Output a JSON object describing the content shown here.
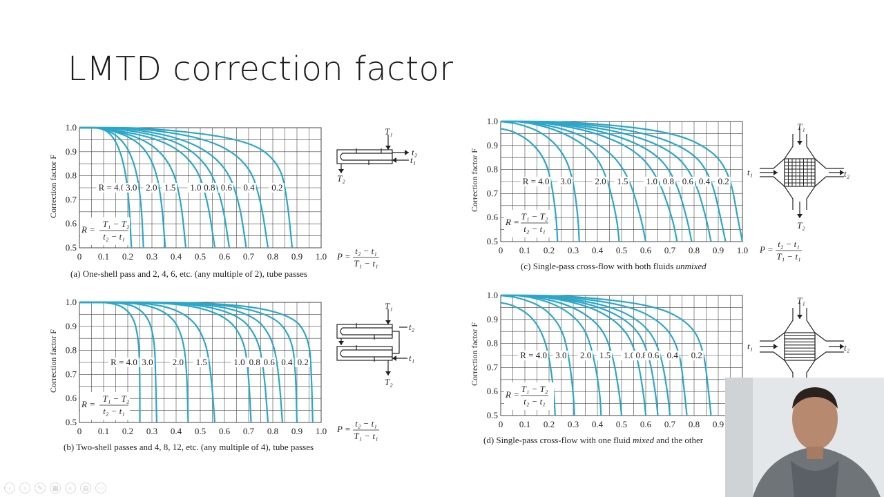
{
  "slide": {
    "title": "LMTD correction factor"
  },
  "captions": {
    "a_label": "(a)",
    "a_text": "One-shell pass and 2, 4, 6, etc. (any multiple of 2), tube passes",
    "b_label": "(b)",
    "b_text": "Two-shell passes and 4, 8, 12, etc. (any multiple of 4), tube passes",
    "c_label": "(c)",
    "c_text": "Single-pass cross-flow with both fluids",
    "c_em": "unmixed",
    "d_label": "(d)",
    "d_text": "Single-pass cross-flow with one fluid",
    "d_em": "mixed",
    "d_tail": "and the other"
  },
  "formulas": {
    "R_prefix": "R =",
    "R_num": "T₁ − T₂",
    "R_den": "t₂ − t₁",
    "P_prefix": "P =",
    "P_num": "t₂ − t₁",
    "P_den": "T₁ − t₁"
  },
  "diagram_labels": {
    "T1": "T₁",
    "T2": "T₂",
    "t1": "t₁",
    "t2": "t₂"
  },
  "colors": {
    "curve": "#2aa7c9",
    "grid": "#444444",
    "text": "#222222"
  },
  "chart_data": [
    {
      "id": "a",
      "type": "line",
      "ylabel": "Correction factor F",
      "xlim": [
        0,
        1.0
      ],
      "ylim": [
        0.5,
        1.0
      ],
      "x_ticks": [
        "0",
        "0.1",
        "0.2",
        "0.3",
        "0.4",
        "0.5",
        "0.6",
        "0.7",
        "0.8",
        "0.9",
        "1.0"
      ],
      "y_ticks": [
        "0.5",
        "0.6",
        "0.7",
        "0.8",
        "0.9",
        "1.0"
      ],
      "r_label_prefix": "R =",
      "series": [
        {
          "name": "4.0",
          "label": "4.0",
          "x": [
            0.0,
            0.1,
            0.15,
            0.185,
            0.205,
            0.215
          ],
          "y": [
            1.0,
            1.0,
            0.95,
            0.85,
            0.7,
            0.5
          ]
        },
        {
          "name": "3.0",
          "label": "3.0",
          "x": [
            0.0,
            0.1,
            0.18,
            0.23,
            0.255,
            0.265
          ],
          "y": [
            1.0,
            1.0,
            0.95,
            0.85,
            0.7,
            0.5
          ]
        },
        {
          "name": "2.0",
          "label": "2.0",
          "x": [
            0.0,
            0.1,
            0.24,
            0.31,
            0.34,
            0.355
          ],
          "y": [
            1.0,
            1.0,
            0.95,
            0.85,
            0.7,
            0.5
          ]
        },
        {
          "name": "1.5",
          "label": "1.5",
          "x": [
            0.0,
            0.1,
            0.28,
            0.38,
            0.42,
            0.44
          ],
          "y": [
            1.0,
            1.0,
            0.95,
            0.85,
            0.7,
            0.5
          ]
        },
        {
          "name": "1.0",
          "label": "1.0",
          "x": [
            0.0,
            0.1,
            0.35,
            0.48,
            0.53,
            0.56
          ],
          "y": [
            1.0,
            1.0,
            0.95,
            0.85,
            0.7,
            0.5
          ]
        },
        {
          "name": "0.8",
          "label": "0.8",
          "x": [
            0.0,
            0.15,
            0.4,
            0.53,
            0.59,
            0.62
          ],
          "y": [
            1.0,
            1.0,
            0.95,
            0.85,
            0.7,
            0.5
          ]
        },
        {
          "name": "0.6",
          "label": "0.6",
          "x": [
            0.0,
            0.2,
            0.45,
            0.6,
            0.66,
            0.69
          ],
          "y": [
            1.0,
            1.0,
            0.95,
            0.85,
            0.7,
            0.5
          ]
        },
        {
          "name": "0.4",
          "label": "0.4",
          "x": [
            0.0,
            0.25,
            0.55,
            0.7,
            0.75,
            0.78
          ],
          "y": [
            1.0,
            1.0,
            0.95,
            0.85,
            0.7,
            0.5
          ]
        },
        {
          "name": "0.2",
          "label": "0.2",
          "x": [
            0.0,
            0.3,
            0.7,
            0.83,
            0.86,
            0.88
          ],
          "y": [
            1.0,
            1.0,
            0.95,
            0.85,
            0.7,
            0.5
          ]
        }
      ]
    },
    {
      "id": "b",
      "type": "line",
      "ylabel": "Correction factor F",
      "xlim": [
        0,
        1.0
      ],
      "ylim": [
        0.5,
        1.0
      ],
      "x_ticks": [
        "0",
        "0.1",
        "0.2",
        "0.3",
        "0.4",
        "0.5",
        "0.6",
        "0.7",
        "0.8",
        "0.9",
        "1.0"
      ],
      "y_ticks": [
        "0.5",
        "0.6",
        "0.7",
        "0.8",
        "0.9",
        "1.0"
      ],
      "r_label_prefix": "R =",
      "series": [
        {
          "name": "4.0",
          "label": "4.0",
          "x": [
            0.0,
            0.15,
            0.22,
            0.245,
            0.25,
            0.25
          ],
          "y": [
            1.0,
            1.0,
            0.95,
            0.85,
            0.7,
            0.5
          ]
        },
        {
          "name": "3.0",
          "label": "3.0",
          "x": [
            0.0,
            0.2,
            0.28,
            0.31,
            0.315,
            0.32
          ],
          "y": [
            1.0,
            1.0,
            0.95,
            0.85,
            0.7,
            0.5
          ]
        },
        {
          "name": "2.0",
          "label": "2.0",
          "x": [
            0.0,
            0.25,
            0.38,
            0.43,
            0.445,
            0.45
          ],
          "y": [
            1.0,
            1.0,
            0.95,
            0.85,
            0.7,
            0.5
          ]
        },
        {
          "name": "1.5",
          "label": "1.5",
          "x": [
            0.0,
            0.3,
            0.45,
            0.52,
            0.545,
            0.56
          ],
          "y": [
            1.0,
            1.0,
            0.95,
            0.85,
            0.7,
            0.5
          ]
        },
        {
          "name": "1.0",
          "label": "1.0",
          "x": [
            0.0,
            0.4,
            0.6,
            0.68,
            0.7,
            0.71
          ],
          "y": [
            1.0,
            1.0,
            0.95,
            0.85,
            0.7,
            0.5
          ]
        },
        {
          "name": "0.8",
          "label": "0.8",
          "x": [
            0.0,
            0.45,
            0.66,
            0.74,
            0.765,
            0.78
          ],
          "y": [
            1.0,
            1.0,
            0.95,
            0.85,
            0.7,
            0.5
          ]
        },
        {
          "name": "0.6",
          "label": "0.6",
          "x": [
            0.0,
            0.5,
            0.72,
            0.8,
            0.825,
            0.84
          ],
          "y": [
            1.0,
            1.0,
            0.95,
            0.85,
            0.7,
            0.5
          ]
        },
        {
          "name": "0.4",
          "label": "0.4",
          "x": [
            0.0,
            0.55,
            0.8,
            0.88,
            0.895,
            0.9
          ],
          "y": [
            1.0,
            1.0,
            0.95,
            0.85,
            0.7,
            0.5
          ]
        },
        {
          "name": "0.2",
          "label": "0.2",
          "x": [
            0.0,
            0.6,
            0.88,
            0.95,
            0.96,
            0.965
          ],
          "y": [
            1.0,
            1.0,
            0.95,
            0.85,
            0.7,
            0.5
          ]
        }
      ]
    },
    {
      "id": "c",
      "type": "line",
      "ylabel": "Correction factor F",
      "xlim": [
        0,
        1.0
      ],
      "ylim": [
        0.5,
        1.0
      ],
      "x_ticks": [
        "0",
        "0.1",
        "0.2",
        "0.3",
        "0.4",
        "0.5",
        "0.6",
        "0.7",
        "0.8",
        "0.9",
        "1.0"
      ],
      "y_ticks": [
        "0.5",
        "0.6",
        "0.7",
        "0.8",
        "0.9",
        "1.0"
      ],
      "r_label_prefix": "R =",
      "series": [
        {
          "name": "4.0",
          "label": "4.0",
          "x": [
            0.0,
            0.05,
            0.12,
            0.18,
            0.21,
            0.23,
            0.235
          ],
          "y": [
            0.97,
            0.96,
            0.92,
            0.85,
            0.75,
            0.6,
            0.5
          ]
        },
        {
          "name": "3.0",
          "label": "3.0",
          "x": [
            0.0,
            0.08,
            0.18,
            0.26,
            0.3,
            0.32,
            0.325
          ],
          "y": [
            1.0,
            0.99,
            0.95,
            0.87,
            0.76,
            0.6,
            0.5
          ]
        },
        {
          "name": "2.0",
          "label": "2.0",
          "x": [
            0.0,
            0.1,
            0.25,
            0.38,
            0.44,
            0.48,
            0.49
          ],
          "y": [
            1.0,
            1.0,
            0.96,
            0.88,
            0.77,
            0.6,
            0.5
          ]
        },
        {
          "name": "1.5",
          "label": "1.5",
          "x": [
            0.0,
            0.12,
            0.3,
            0.45,
            0.53,
            0.58,
            0.6
          ],
          "y": [
            1.0,
            1.0,
            0.96,
            0.88,
            0.77,
            0.6,
            0.5
          ]
        },
        {
          "name": "1.0",
          "label": "1.0",
          "x": [
            0.0,
            0.15,
            0.38,
            0.56,
            0.65,
            0.71,
            0.73
          ],
          "y": [
            1.0,
            1.0,
            0.96,
            0.88,
            0.77,
            0.6,
            0.5
          ]
        },
        {
          "name": "0.8",
          "label": "0.8",
          "x": [
            0.0,
            0.18,
            0.43,
            0.63,
            0.72,
            0.77,
            0.79
          ],
          "y": [
            1.0,
            1.0,
            0.96,
            0.88,
            0.77,
            0.6,
            0.5
          ]
        },
        {
          "name": "0.6",
          "label": "0.6",
          "x": [
            0.0,
            0.2,
            0.5,
            0.71,
            0.8,
            0.85,
            0.87
          ],
          "y": [
            1.0,
            1.0,
            0.96,
            0.88,
            0.77,
            0.6,
            0.5
          ]
        },
        {
          "name": "0.4",
          "label": "0.4",
          "x": [
            0.0,
            0.25,
            0.58,
            0.79,
            0.87,
            0.91,
            0.93
          ],
          "y": [
            1.0,
            1.0,
            0.96,
            0.88,
            0.77,
            0.6,
            0.5
          ]
        },
        {
          "name": "0.2",
          "label": "0.2",
          "x": [
            0.0,
            0.3,
            0.7,
            0.88,
            0.95,
            0.98,
            1.0
          ],
          "y": [
            1.0,
            1.0,
            0.96,
            0.88,
            0.77,
            0.6,
            0.5
          ]
        }
      ]
    },
    {
      "id": "d",
      "type": "line",
      "ylabel": "Correction factor F",
      "xlim": [
        0,
        1.0
      ],
      "ylim": [
        0.5,
        1.0
      ],
      "x_ticks": [
        "0",
        "0.1",
        "0.2",
        "0.3",
        "0.4",
        "0.5",
        "0.6",
        "0.7",
        "0.8",
        "0.9"
      ],
      "y_ticks": [
        "0.5",
        "0.6",
        "0.7",
        "0.8",
        "0.9",
        "1.0"
      ],
      "r_label_prefix": "R =",
      "series": [
        {
          "name": "4.0",
          "label": "4.0",
          "x": [
            0.0,
            0.05,
            0.12,
            0.17,
            0.2,
            0.22,
            0.225
          ],
          "y": [
            0.97,
            0.96,
            0.92,
            0.85,
            0.75,
            0.6,
            0.5
          ]
        },
        {
          "name": "3.0",
          "label": "3.0",
          "x": [
            0.0,
            0.08,
            0.18,
            0.25,
            0.28,
            0.3,
            0.305
          ],
          "y": [
            1.0,
            0.99,
            0.95,
            0.87,
            0.76,
            0.6,
            0.5
          ]
        },
        {
          "name": "2.0",
          "label": "2.0",
          "x": [
            0.0,
            0.1,
            0.24,
            0.34,
            0.38,
            0.41,
            0.415
          ],
          "y": [
            1.0,
            1.0,
            0.96,
            0.88,
            0.77,
            0.6,
            0.5
          ]
        },
        {
          "name": "1.5",
          "label": "1.5",
          "x": [
            0.0,
            0.12,
            0.29,
            0.41,
            0.46,
            0.49,
            0.5
          ],
          "y": [
            1.0,
            1.0,
            0.96,
            0.88,
            0.77,
            0.6,
            0.5
          ]
        },
        {
          "name": "1.0",
          "label": "1.0",
          "x": [
            0.0,
            0.15,
            0.36,
            0.5,
            0.56,
            0.59,
            0.6
          ],
          "y": [
            1.0,
            1.0,
            0.96,
            0.88,
            0.77,
            0.6,
            0.5
          ]
        },
        {
          "name": "0.8",
          "label": "0.8",
          "x": [
            0.0,
            0.17,
            0.4,
            0.55,
            0.61,
            0.64,
            0.65
          ],
          "y": [
            1.0,
            1.0,
            0.96,
            0.88,
            0.77,
            0.6,
            0.5
          ]
        },
        {
          "name": "0.6",
          "label": "0.6",
          "x": [
            0.0,
            0.19,
            0.45,
            0.6,
            0.66,
            0.69,
            0.7
          ],
          "y": [
            1.0,
            1.0,
            0.96,
            0.88,
            0.77,
            0.6,
            0.5
          ]
        },
        {
          "name": "0.4",
          "label": "0.4",
          "x": [
            0.0,
            0.23,
            0.53,
            0.68,
            0.74,
            0.76,
            0.77
          ],
          "y": [
            1.0,
            1.0,
            0.96,
            0.88,
            0.77,
            0.6,
            0.5
          ]
        },
        {
          "name": "0.2",
          "label": "0.2",
          "x": [
            0.0,
            0.28,
            0.64,
            0.79,
            0.84,
            0.86,
            0.87
          ],
          "y": [
            1.0,
            1.0,
            0.96,
            0.88,
            0.77,
            0.6,
            0.5
          ]
        }
      ]
    }
  ]
}
